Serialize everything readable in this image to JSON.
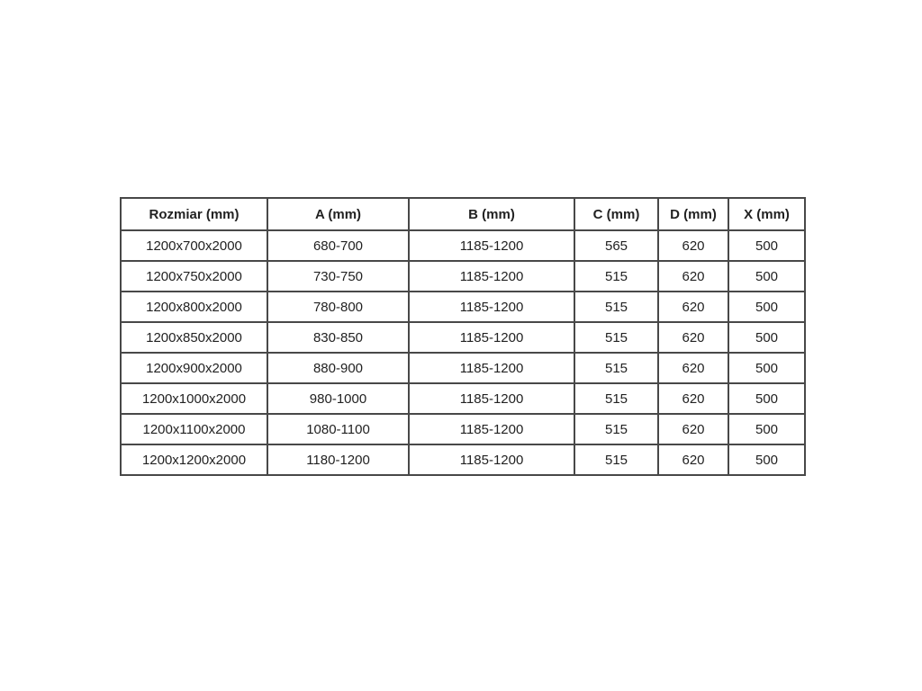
{
  "page": {
    "background_color": "#ffffff"
  },
  "chart_data": {
    "type": "table",
    "columns": [
      "Rozmiar (mm)",
      "A (mm)",
      "B (mm)",
      "C (mm)",
      "D (mm)",
      "X (mm)"
    ],
    "rows": [
      [
        "1200x700x2000",
        "680-700",
        "1185-1200",
        "565",
        "620",
        "500"
      ],
      [
        "1200x750x2000",
        "730-750",
        "1185-1200",
        "515",
        "620",
        "500"
      ],
      [
        "1200x800x2000",
        "780-800",
        "1185-1200",
        "515",
        "620",
        "500"
      ],
      [
        "1200x850x2000",
        "830-850",
        "1185-1200",
        "515",
        "620",
        "500"
      ],
      [
        "1200x900x2000",
        "880-900",
        "1185-1200",
        "515",
        "620",
        "500"
      ],
      [
        "1200x1000x2000",
        "980-1000",
        "1185-1200",
        "515",
        "620",
        "500"
      ],
      [
        "1200x1100x2000",
        "1080-1100",
        "1185-1200",
        "515",
        "620",
        "500"
      ],
      [
        "1200x1200x2000",
        "1180-1200",
        "1185-1200",
        "515",
        "620",
        "500"
      ]
    ],
    "styles": {
      "border_color": "#484848",
      "text_color": "#222222",
      "header_bold": true,
      "grid": "on"
    }
  }
}
